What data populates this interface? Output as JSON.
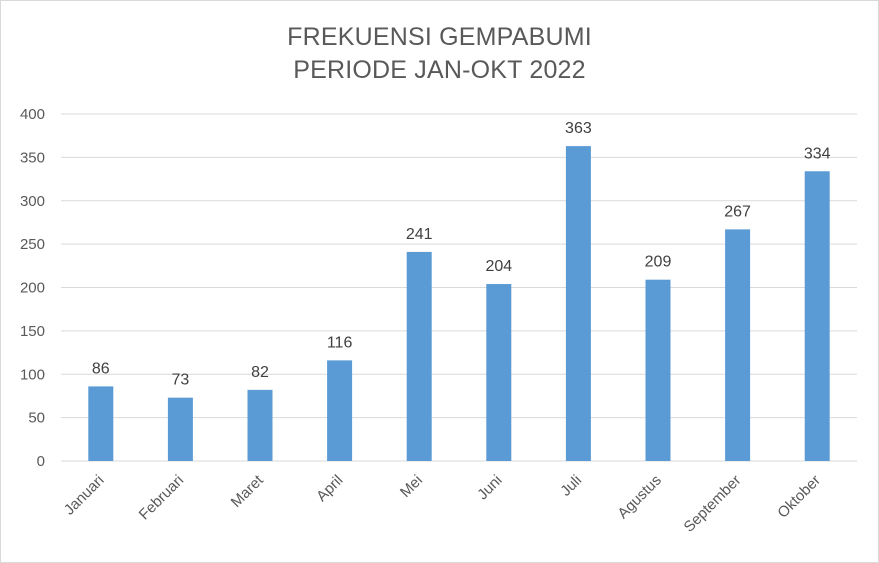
{
  "chart_data": {
    "type": "bar",
    "title": [
      "FREKUENSI GEMPABUMI",
      "PERIODE JAN-OKT 2022"
    ],
    "categories": [
      "Januari",
      "Februari",
      "Maret",
      "April",
      "Mei",
      "Juni",
      "Juli",
      "Agustus",
      "September",
      "Oktober"
    ],
    "values": [
      86,
      73,
      82,
      116,
      241,
      204,
      363,
      209,
      267,
      334
    ],
    "data_labels": [
      "86",
      "73",
      "82",
      "116",
      "241",
      "204",
      "363",
      "209",
      "267",
      "334"
    ],
    "yticks": [
      "0",
      "50",
      "100",
      "150",
      "200",
      "250",
      "300",
      "350",
      "400"
    ],
    "ylim": [
      0,
      400
    ],
    "grid": true,
    "legend": false,
    "bar_color": "#5b9bd5",
    "grid_color": "#d9d9d9"
  }
}
